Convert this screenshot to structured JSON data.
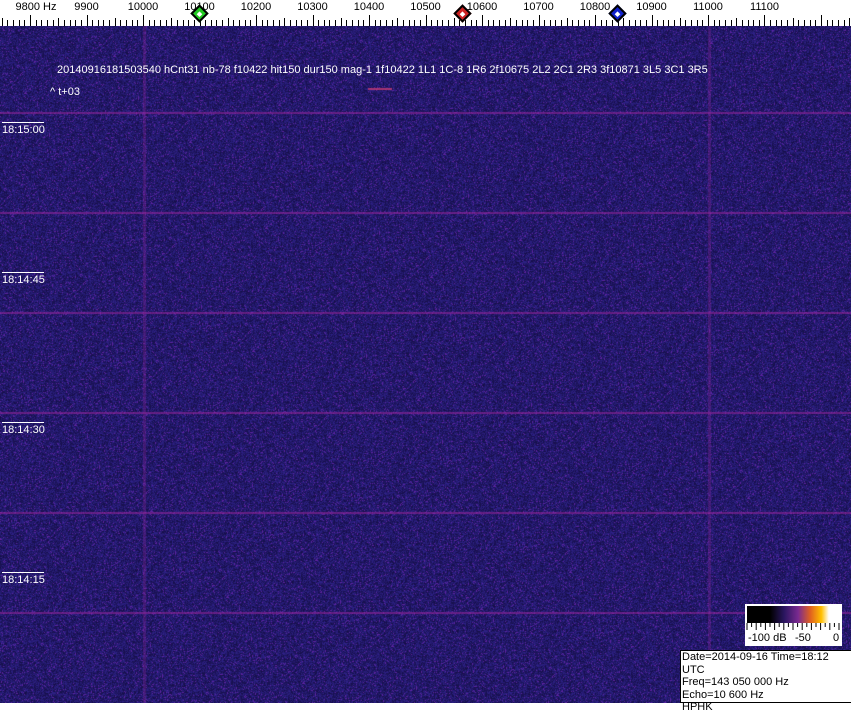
{
  "axis": {
    "unit_label": "9800 Hz",
    "ticks": [
      "9900",
      "10000",
      "10100",
      "10200",
      "10300",
      "10400",
      "10500",
      "10600",
      "10700",
      "10800",
      "10900",
      "11000",
      "11100"
    ]
  },
  "markers": [
    {
      "name": "green-marker",
      "color": "#22cc22",
      "freq": 10100
    },
    {
      "name": "red-marker",
      "color": "#cc2222",
      "freq": 10565
    },
    {
      "name": "blue-marker",
      "color": "#1122cc",
      "freq": 10840
    }
  ],
  "overlay": {
    "detection_line": "20140916181503540 hCnt31 nb-78 f10422 hit150 dur150 mag-1 1f10422 1L1 1C-8 1R6 2f10675 2L2 2C1 2R3 3f10871 3L5 3C1 3R5",
    "offset_line": "^ t+03"
  },
  "time_labels": [
    "18:15:00",
    "18:14:45",
    "18:14:30",
    "18:14:15"
  ],
  "colorbar": {
    "labels": [
      "-100 dB",
      "-50",
      "0"
    ]
  },
  "info": {
    "date_time": "Date=2014-09-16 Time=18:12 UTC",
    "freq": "Freq=143 050 000 Hz",
    "echo": "Echo=10 600 Hz",
    "station": "HPHK"
  },
  "colors": {
    "background": "#20186a",
    "grid": "#9a2aa0"
  }
}
